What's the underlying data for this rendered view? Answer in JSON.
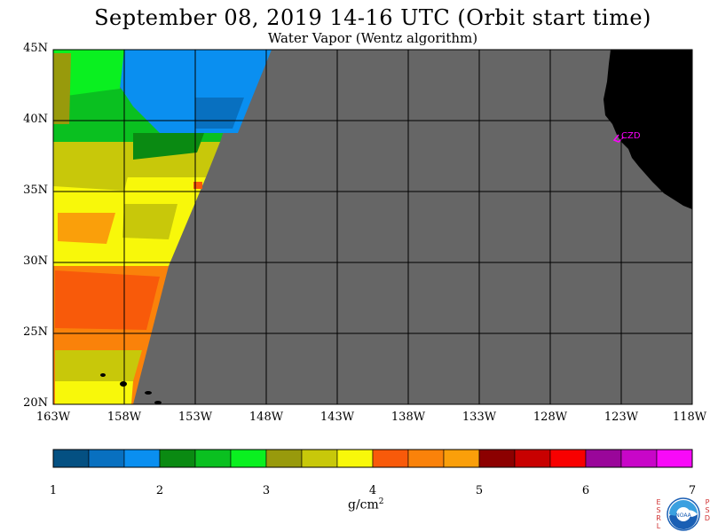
{
  "title": "September 08, 2019  14-16 UTC  (Orbit start time)",
  "subtitle": "Water Vapor (Wentz algorithm)",
  "latitude_labels": [
    "45N",
    "40N",
    "35N",
    "30N",
    "25N",
    "20N"
  ],
  "longitude_labels": [
    "163W",
    "158W",
    "153W",
    "148W",
    "143W",
    "138W",
    "133W",
    "128W",
    "123W",
    "118W"
  ],
  "station_label": "CZD",
  "colorbar": {
    "tick_labels": [
      "1",
      "2",
      "3",
      "4",
      "5",
      "6",
      "7"
    ],
    "unit": "g/cm",
    "unit_sup": "2",
    "colors": [
      "#045082",
      "#0870c0",
      "#0a8ff0",
      "#0a8a12",
      "#0ac020",
      "#0af020",
      "#989a0c",
      "#c8c80a",
      "#f8f80a",
      "#f85a0a",
      "#fa820a",
      "#fa9f0a",
      "#8c0000",
      "#c80000",
      "#f80000",
      "#9a069a",
      "#c806c8",
      "#f80af8"
    ]
  },
  "colors": {
    "no_data": "#666666",
    "land": "#000000",
    "station": "#ff00ff",
    "grid": "#000000"
  },
  "logo": {
    "left_letters": [
      "E",
      "S",
      "R",
      "L"
    ],
    "right_letters": [
      "P",
      "S",
      "D"
    ],
    "text": "NOAA"
  }
}
